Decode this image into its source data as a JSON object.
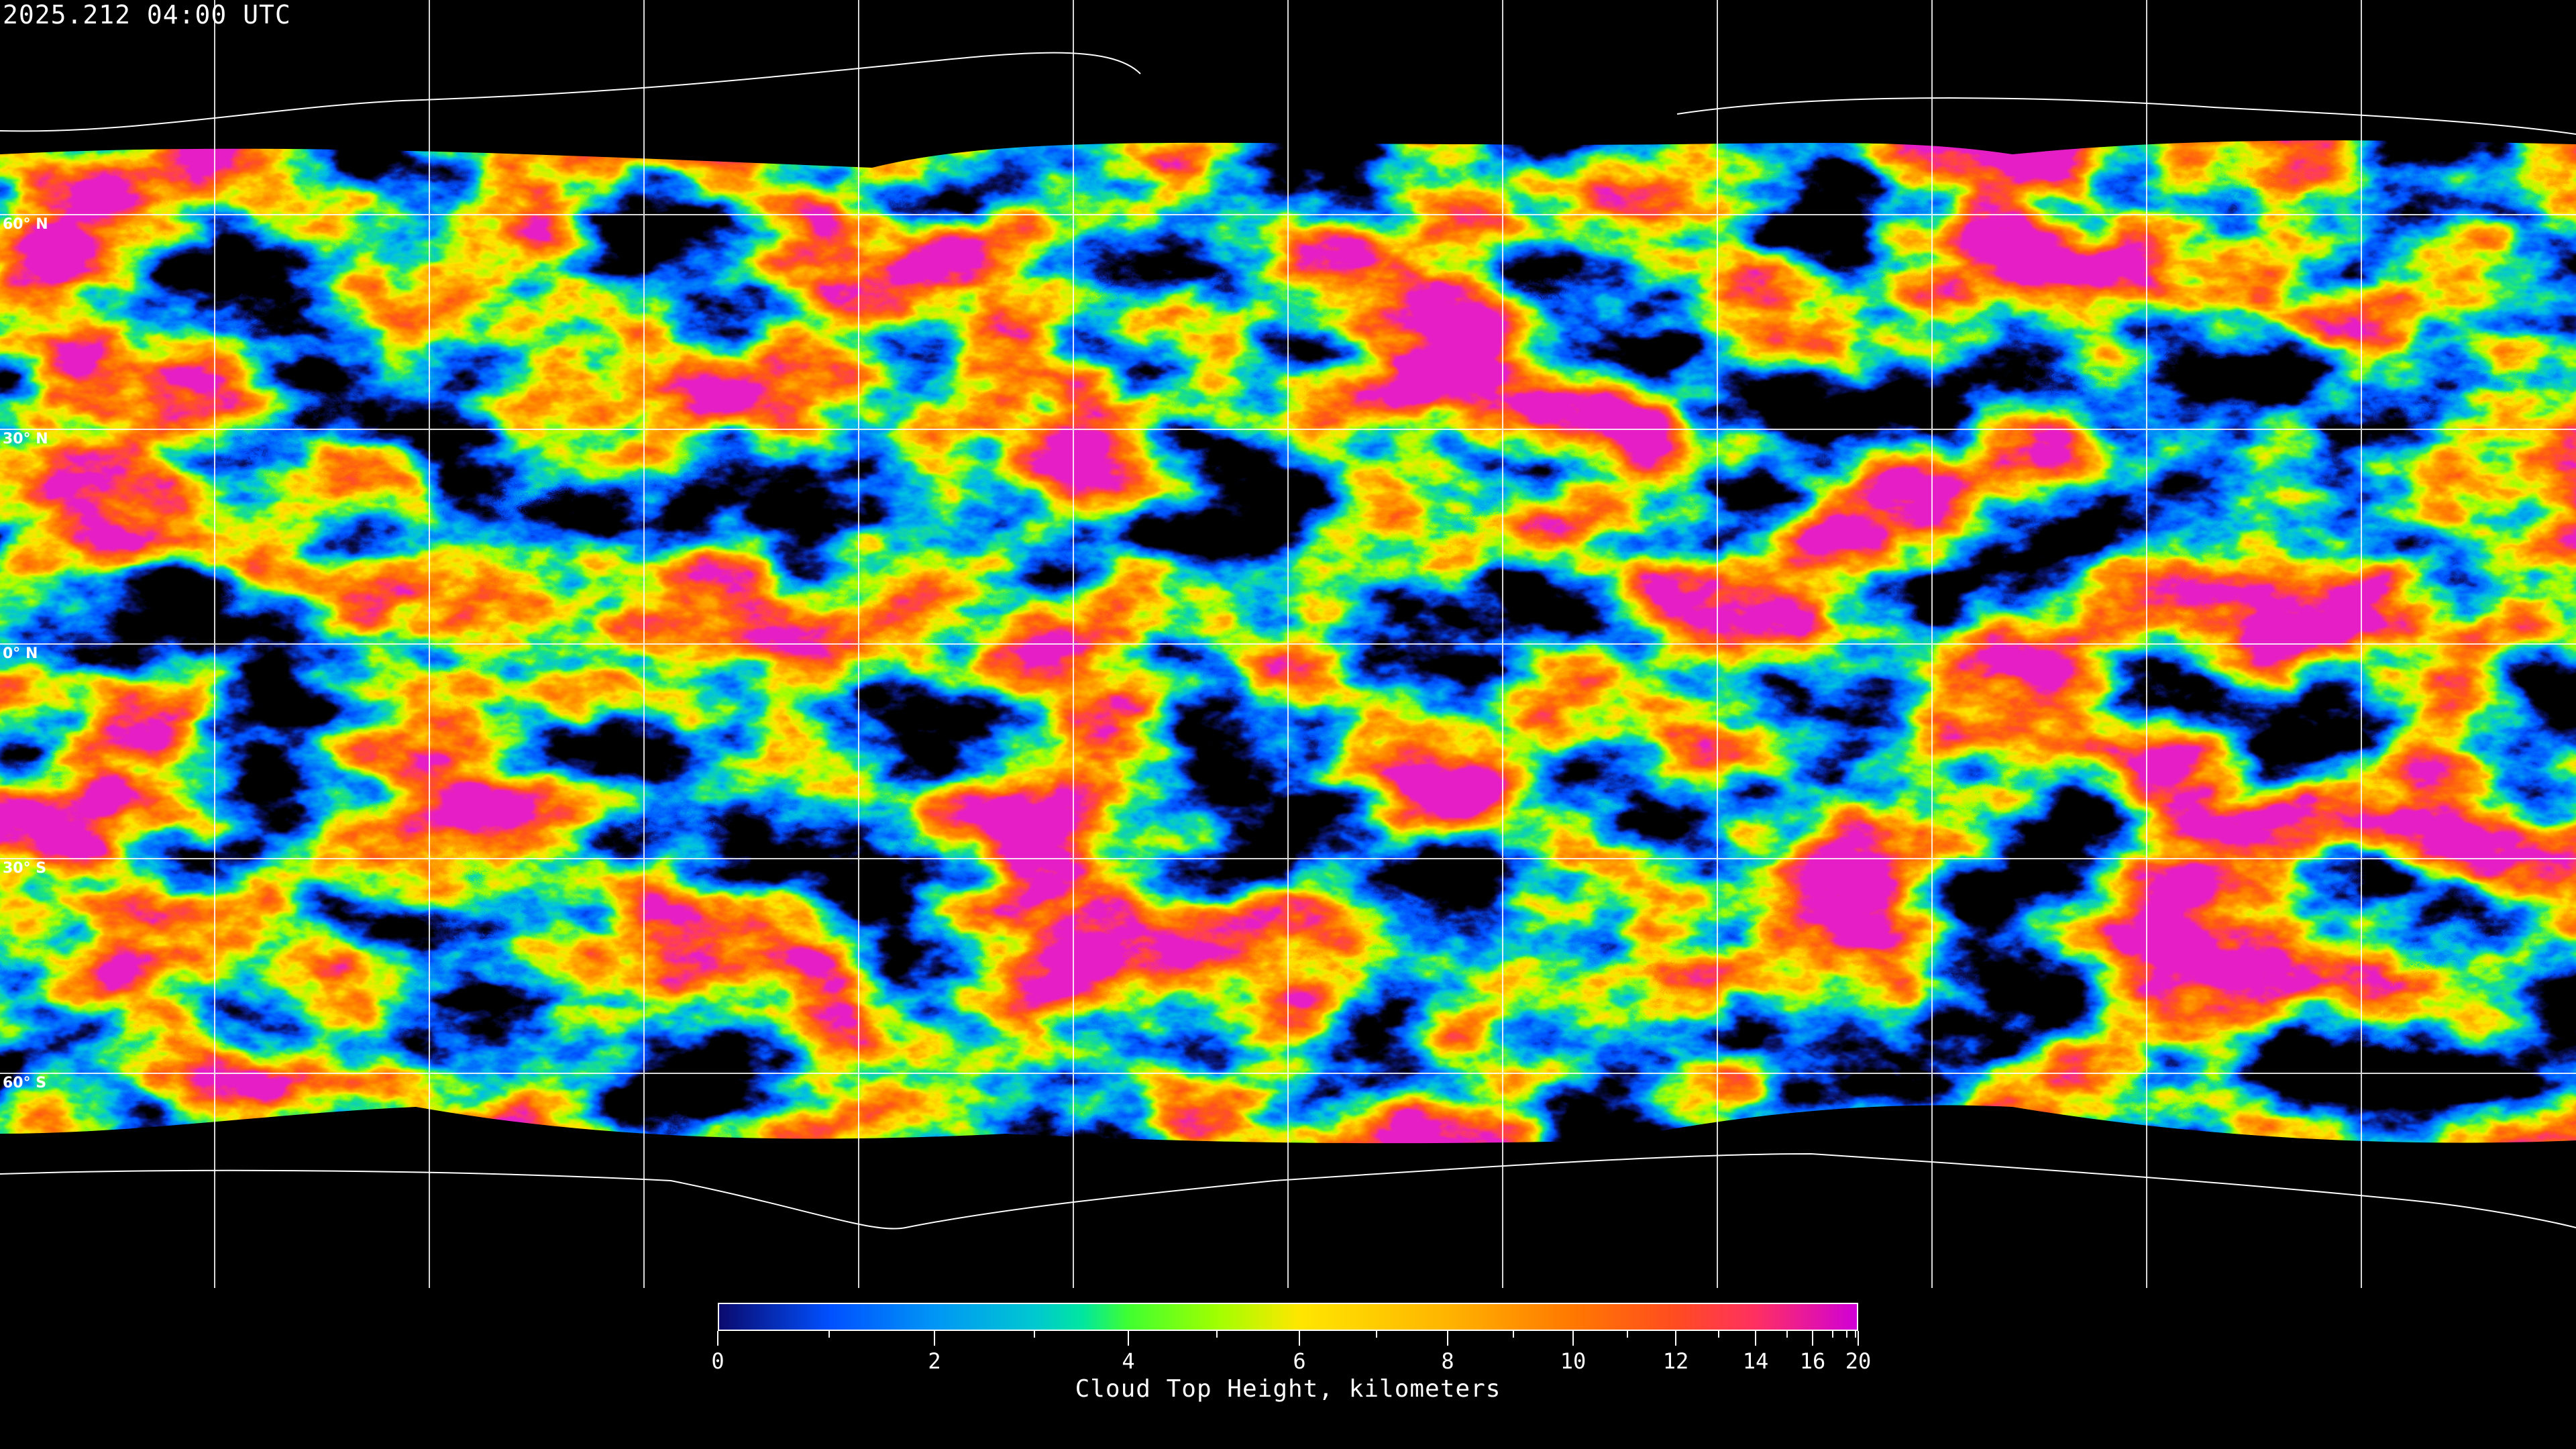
{
  "timestamp": "2025.212 04:00 UTC",
  "map": {
    "projection": "equirectangular",
    "grid_spacing_degrees": 30,
    "background": "#000000",
    "grid_color": "#ffffff",
    "lat_labels": [
      {
        "lat": 60,
        "text": "60° N"
      },
      {
        "lat": 30,
        "text": "30° N"
      },
      {
        "lat": 0,
        "text": "0° N"
      },
      {
        "lat": -30,
        "text": "30° S"
      },
      {
        "lat": -60,
        "text": "60° S"
      }
    ]
  },
  "colorbar": {
    "title": "Cloud Top Height, kilometers",
    "range": [
      0,
      20
    ],
    "major_ticks": [
      0,
      2,
      4,
      6,
      8,
      10,
      12,
      14,
      16,
      20
    ],
    "minor_ticks": [
      1,
      3,
      5,
      7,
      9,
      11,
      13,
      15,
      17,
      18,
      19
    ],
    "stops": [
      {
        "value": 0,
        "color": "#0a0a6e"
      },
      {
        "value": 1,
        "color": "#0050ff"
      },
      {
        "value": 2,
        "color": "#0096f5"
      },
      {
        "value": 3,
        "color": "#00c8d0"
      },
      {
        "value": 3.5,
        "color": "#00e6a0"
      },
      {
        "value": 4,
        "color": "#40ff30"
      },
      {
        "value": 5,
        "color": "#a0ff00"
      },
      {
        "value": 6,
        "color": "#ffe600"
      },
      {
        "value": 8,
        "color": "#ffb400"
      },
      {
        "value": 10,
        "color": "#ff7800"
      },
      {
        "value": 12,
        "color": "#ff4c20"
      },
      {
        "value": 14,
        "color": "#ff3060"
      },
      {
        "value": 20,
        "color": "#d000d8"
      }
    ]
  }
}
